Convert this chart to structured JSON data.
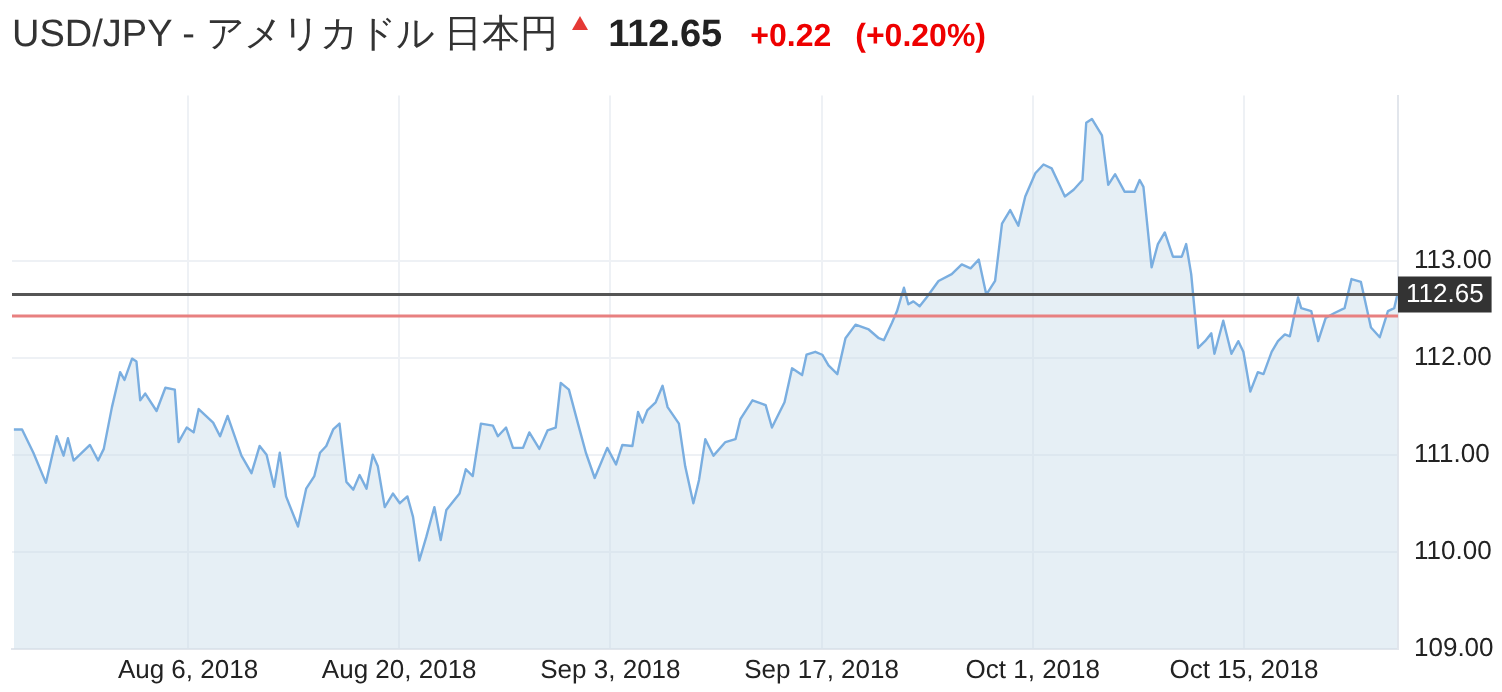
{
  "chart_data": {
    "type": "area",
    "title": "USD/JPY - アメリカドル 日本円",
    "annotations": [
      "112.65",
      "+0.22",
      "(+0.20%)"
    ],
    "x": [
      "2018-07-25T11:00",
      "2018-07-26T00:00",
      "2018-07-26T18:00",
      "2018-07-27T14:00",
      "2018-07-28T07:00",
      "2018-07-28T18:00",
      "2018-07-29T01:00",
      "2018-07-29T10:00",
      "2018-07-30T12:00",
      "2018-07-31T01:00",
      "2018-07-31T10:00",
      "2018-07-31T23:00",
      "2018-08-01T12:00",
      "2018-08-01T19:00",
      "2018-08-02T07:00",
      "2018-08-02T14:00",
      "2018-08-02T20:00",
      "2018-08-03T04:00",
      "2018-08-03T22:00",
      "2018-08-04T12:00",
      "2018-08-05T03:00",
      "2018-08-05T09:00",
      "2018-08-05T22:00",
      "2018-08-06T09:00",
      "2018-08-06T17:00",
      "2018-08-07T16:00",
      "2018-08-08T03:00",
      "2018-08-08T15:00",
      "2018-08-09T13:00",
      "2018-08-10T05:00",
      "2018-08-10T18:00",
      "2018-08-11T05:00",
      "2018-08-11T17:00",
      "2018-08-12T02:00",
      "2018-08-12T12:00",
      "2018-08-13T07:00",
      "2018-08-13T20:00",
      "2018-08-14T09:00",
      "2018-08-14T18:00",
      "2018-08-15T04:00",
      "2018-08-15T15:00",
      "2018-08-16T01:00",
      "2018-08-16T12:00",
      "2018-08-16T23:00",
      "2018-08-17T09:00",
      "2018-08-17T20:00",
      "2018-08-18T06:00",
      "2018-08-18T14:00",
      "2018-08-19T01:00",
      "2018-08-19T14:00",
      "2018-08-20T01:00",
      "2018-08-20T13:00",
      "2018-08-20T22:00",
      "2018-08-21T08:00",
      "2018-08-21T19:00",
      "2018-08-22T08:00",
      "2018-08-22T18:00",
      "2018-08-23T03:00",
      "2018-08-24T00:00",
      "2018-08-24T10:00",
      "2018-08-24T21:00",
      "2018-08-25T10:00",
      "2018-08-26T05:00",
      "2018-08-26T13:00",
      "2018-08-27T02:00",
      "2018-08-27T13:00",
      "2018-08-28T05:00",
      "2018-08-28T15:00",
      "2018-08-29T07:00",
      "2018-08-29T20:00",
      "2018-08-30T09:00",
      "2018-08-30T17:00",
      "2018-08-31T06:00",
      "2018-08-31T20:00",
      "2018-09-01T09:00",
      "2018-09-01T23:00",
      "2018-09-02T19:00",
      "2018-09-03T09:00",
      "2018-09-03T19:00",
      "2018-09-04T11:00",
      "2018-09-04T20:00",
      "2018-09-05T03:00",
      "2018-09-05T11:00",
      "2018-09-06T00:00",
      "2018-09-06T11:00",
      "2018-09-06T19:00",
      "2018-09-07T13:00",
      "2018-09-07T23:00",
      "2018-09-08T12:00",
      "2018-09-08T21:00",
      "2018-09-09T07:00",
      "2018-09-09T20:00",
      "2018-09-10T15:00",
      "2018-09-11T07:00",
      "2018-09-11T15:00",
      "2018-09-12T10:00",
      "2018-09-13T07:00",
      "2018-09-13T17:00",
      "2018-09-14T13:00",
      "2018-09-15T01:00",
      "2018-09-15T17:00",
      "2018-09-16T00:00",
      "2018-09-16T14:00",
      "2018-09-17T01:00",
      "2018-09-17T11:00",
      "2018-09-18T01:00",
      "2018-09-18T14:00",
      "2018-09-19T06:00",
      "2018-09-20T03:00",
      "2018-09-20T19:00",
      "2018-09-21T03:00",
      "2018-09-21T16:00",
      "2018-09-22T00:00",
      "2018-09-22T11:00",
      "2018-09-22T18:00",
      "2018-09-23T02:00",
      "2018-09-23T12:00",
      "2018-09-23T23:00",
      "2018-09-24T18:00",
      "2018-09-25T15:00",
      "2018-09-26T07:00",
      "2018-09-26T21:00",
      "2018-09-27T10:00",
      "2018-09-27T22:00",
      "2018-09-28T12:00",
      "2018-09-28T23:00",
      "2018-09-29T12:00",
      "2018-09-30T01:00",
      "2018-09-30T12:00",
      "2018-10-01T04:00",
      "2018-10-01T17:00",
      "2018-10-02T06:00",
      "2018-10-02T17:00",
      "2018-10-03T03:00",
      "2018-10-03T17:00",
      "2018-10-04T07:00",
      "2018-10-04T13:00",
      "2018-10-04T22:00",
      "2018-10-05T14:00",
      "2018-10-06T00:00",
      "2018-10-06T11:00",
      "2018-10-07T02:00",
      "2018-10-07T18:00",
      "2018-10-08T02:00",
      "2018-10-08T08:00",
      "2018-10-08T21:00",
      "2018-10-09T07:00",
      "2018-10-09T18:00",
      "2018-10-10T07:00",
      "2018-10-10T21:00",
      "2018-10-11T04:00",
      "2018-10-11T12:00",
      "2018-10-11T23:00",
      "2018-10-12T10:00",
      "2018-10-12T20:00",
      "2018-10-13T01:00",
      "2018-10-13T15:00",
      "2018-10-14T04:00",
      "2018-10-14T15:00",
      "2018-10-14T23:00",
      "2018-10-15T10:00",
      "2018-10-15T22:00",
      "2018-10-16T07:00",
      "2018-10-16T20:00",
      "2018-10-17T06:00",
      "2018-10-17T17:00",
      "2018-10-18T01:00",
      "2018-10-18T14:00",
      "2018-10-18T19:00",
      "2018-10-19T11:00",
      "2018-10-19T22:00",
      "2018-10-20T10:00",
      "2018-10-21T00:00",
      "2018-10-21T16:00",
      "2018-10-22T03:00",
      "2018-10-22T18:00",
      "2018-10-23T10:00",
      "2018-10-24T00:00",
      "2018-10-24T13:00",
      "2018-10-24T23:00",
      "2018-10-25T04:00"
    ],
    "series": [
      {
        "color": "#7aaee0",
        "values": [
          111.26,
          111.26,
          111.02,
          110.71,
          111.19,
          110.99,
          111.17,
          110.94,
          111.1,
          110.94,
          111.06,
          111.49,
          111.85,
          111.77,
          111.99,
          111.96,
          111.56,
          111.63,
          111.45,
          111.69,
          111.67,
          111.13,
          111.28,
          111.23,
          111.47,
          111.33,
          111.19,
          111.4,
          110.99,
          110.81,
          111.09,
          111.0,
          110.67,
          111.02,
          110.57,
          110.26,
          110.65,
          110.78,
          111.02,
          111.09,
          111.26,
          111.32,
          110.72,
          110.64,
          110.79,
          110.65,
          111.0,
          110.88,
          110.46,
          110.6,
          110.5,
          110.57,
          110.36,
          109.91,
          110.15,
          110.46,
          110.12,
          110.43,
          110.6,
          110.85,
          110.78,
          111.32,
          111.3,
          111.19,
          111.28,
          111.07,
          111.07,
          111.23,
          111.06,
          111.25,
          111.28,
          111.74,
          111.67,
          111.33,
          111.02,
          110.76,
          111.07,
          110.9,
          111.1,
          111.09,
          111.44,
          111.33,
          111.46,
          111.54,
          111.71,
          111.49,
          111.32,
          110.88,
          110.5,
          110.74,
          111.16,
          110.99,
          111.13,
          111.16,
          111.37,
          111.56,
          111.51,
          111.28,
          111.54,
          111.89,
          111.82,
          112.03,
          112.06,
          112.03,
          111.92,
          111.83,
          112.2,
          112.34,
          112.29,
          112.2,
          112.18,
          112.36,
          112.48,
          112.72,
          112.55,
          112.58,
          112.53,
          112.62,
          112.79,
          112.86,
          112.96,
          112.92,
          113.01,
          112.65,
          112.79,
          113.38,
          113.52,
          113.36,
          113.66,
          113.9,
          113.99,
          113.95,
          113.8,
          113.66,
          113.73,
          113.83,
          114.42,
          114.46,
          114.29,
          113.78,
          113.89,
          113.71,
          113.71,
          113.83,
          113.76,
          112.93,
          113.17,
          113.29,
          113.04,
          113.04,
          113.17,
          112.86,
          112.1,
          112.17,
          112.25,
          112.04,
          112.38,
          112.04,
          112.17,
          112.06,
          111.65,
          111.85,
          111.83,
          112.06,
          112.17,
          112.24,
          112.22,
          112.62,
          112.51,
          112.48,
          112.17,
          112.41,
          112.46,
          112.51,
          112.81,
          112.78,
          112.31,
          112.21,
          112.48,
          112.51,
          112.65
        ]
      }
    ],
    "xlim": [
      "2018-07-25T08:00",
      "2018-10-25T05:00"
    ],
    "xticks": [
      {
        "value": "2018-08-06",
        "label": "Aug 6, 2018"
      },
      {
        "value": "2018-08-20",
        "label": "Aug 20, 2018"
      },
      {
        "value": "2018-09-03",
        "label": "Sep 3, 2018"
      },
      {
        "value": "2018-09-17",
        "label": "Sep 17, 2018"
      },
      {
        "value": "2018-10-01",
        "label": "Oct 1, 2018"
      },
      {
        "value": "2018-10-15",
        "label": "Oct 15, 2018"
      }
    ],
    "ylim": [
      109,
      114.7
    ],
    "yticks": [
      {
        "value": 109,
        "label": "109.00"
      },
      {
        "value": 110,
        "label": "110.00"
      },
      {
        "value": 111,
        "label": "111.00"
      },
      {
        "value": 112,
        "label": "112.00"
      },
      {
        "value": 113,
        "label": "113.00"
      }
    ],
    "ref_lines": [
      {
        "axis": "y",
        "value": 112.65,
        "label": "112.65",
        "color": "#555555"
      },
      {
        "axis": "y",
        "value": 112.43,
        "color": "#e88080"
      }
    ],
    "grid": true,
    "legend": false,
    "marker": "none",
    "line_style": "solid"
  }
}
